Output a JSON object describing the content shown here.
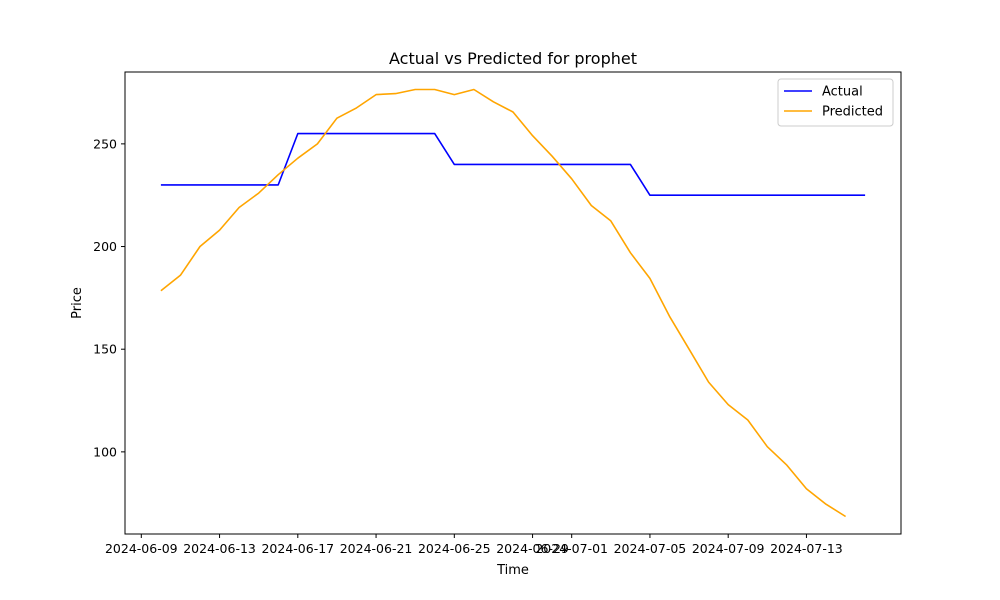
{
  "chart_data": {
    "type": "line",
    "title": "Actual vs Predicted for prophet",
    "xlabel": "Time",
    "ylabel": "Price",
    "x_start": "2024-06-10",
    "x": [
      "2024-06-10",
      "2024-06-11",
      "2024-06-12",
      "2024-06-13",
      "2024-06-14",
      "2024-06-15",
      "2024-06-16",
      "2024-06-17",
      "2024-06-18",
      "2024-06-19",
      "2024-06-20",
      "2024-06-21",
      "2024-06-22",
      "2024-06-23",
      "2024-06-24",
      "2024-06-25",
      "2024-06-26",
      "2024-06-27",
      "2024-06-28",
      "2024-06-29",
      "2024-06-30",
      "2024-07-01",
      "2024-07-02",
      "2024-07-03",
      "2024-07-04",
      "2024-07-05",
      "2024-07-06",
      "2024-07-07",
      "2024-07-08",
      "2024-07-09",
      "2024-07-10",
      "2024-07-11",
      "2024-07-12",
      "2024-07-13",
      "2024-07-14",
      "2024-07-15",
      "2024-07-16"
    ],
    "xlim": [
      "2024-06-08T04:00",
      "2024-07-17T20:00"
    ],
    "ylim": [
      60,
      285
    ],
    "x_ticks": [
      "2024-06-09",
      "2024-06-13",
      "2024-06-17",
      "2024-06-21",
      "2024-06-25",
      "2024-06-29",
      "2024-07-01",
      "2024-07-05",
      "2024-07-09",
      "2024-07-13"
    ],
    "y_ticks": [
      100,
      150,
      200,
      250
    ],
    "series": [
      {
        "name": "Actual",
        "color": "#0000ff",
        "values": [
          230,
          230,
          230,
          230,
          230,
          230,
          230,
          255,
          255,
          255,
          255,
          255,
          255,
          255,
          255,
          240,
          240,
          240,
          240,
          240,
          240,
          240,
          240,
          240,
          240,
          225,
          225,
          225,
          225,
          225,
          225,
          225,
          225,
          225,
          225,
          225,
          225
        ]
      },
      {
        "name": "Predicted",
        "color": "#ffa500",
        "values": [
          178.5,
          186,
          200,
          208,
          219,
          226,
          235,
          243,
          250,
          262.5,
          267.5,
          274,
          274.5,
          276.5,
          276.5,
          274,
          276.5,
          270.5,
          265.5,
          254,
          244,
          233,
          220,
          212.5,
          197,
          184.5,
          166,
          150,
          134,
          123,
          115.5,
          102.5,
          93.5,
          82,
          74.5,
          68.5,
          null
        ]
      }
    ],
    "legend": {
      "position": "top-right"
    },
    "grid": false
  }
}
